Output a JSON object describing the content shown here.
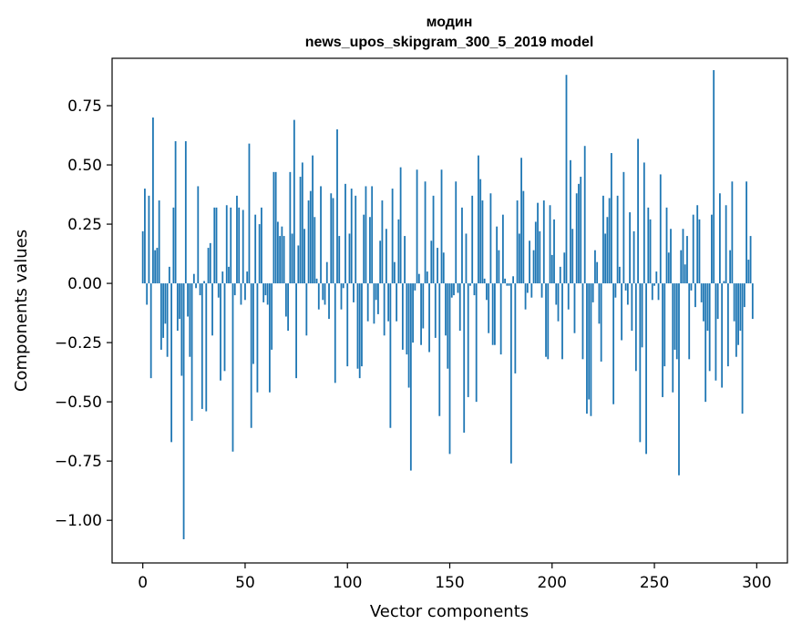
{
  "chart_data": {
    "type": "bar",
    "title_line1": "модин",
    "title_line2": "news_upos_skipgram_300_5_2019 model",
    "xlabel": "Vector components",
    "ylabel": "Components values",
    "xlim": [
      -15,
      315
    ],
    "ylim": [
      -1.18,
      0.95
    ],
    "xticks": [
      0,
      50,
      100,
      150,
      200,
      250,
      300
    ],
    "yticks": [
      -1.0,
      -0.75,
      -0.5,
      -0.25,
      0.0,
      0.25,
      0.5,
      0.75
    ],
    "ytick_labels": [
      "−1.00",
      "−0.75",
      "−0.50",
      "−0.25",
      "0.00",
      "0.25",
      "0.50",
      "0.75"
    ],
    "bar_color": "#1f77b4",
    "series": [
      {
        "name": "модин",
        "x_start": 0,
        "values": [
          0.22,
          0.4,
          -0.09,
          0.37,
          -0.4,
          0.7,
          0.14,
          0.15,
          0.35,
          -0.28,
          -0.23,
          -0.17,
          -0.31,
          0.07,
          -0.67,
          0.32,
          0.6,
          -0.2,
          -0.15,
          -0.39,
          -1.08,
          0.6,
          -0.14,
          -0.31,
          -0.58,
          0.04,
          -0.02,
          0.41,
          -0.05,
          -0.53,
          0.01,
          -0.54,
          0.15,
          0.17,
          -0.22,
          0.32,
          0.32,
          -0.06,
          -0.41,
          0.05,
          -0.37,
          0.33,
          0.07,
          0.32,
          -0.71,
          -0.05,
          0.37,
          0.32,
          -0.09,
          0.31,
          -0.07,
          0.05,
          0.59,
          -0.61,
          -0.34,
          0.29,
          -0.46,
          0.25,
          0.32,
          -0.08,
          -0.05,
          -0.09,
          -0.46,
          -0.28,
          0.47,
          0.47,
          0.26,
          0.2,
          0.24,
          0.2,
          -0.14,
          -0.2,
          0.47,
          0.21,
          0.69,
          -0.4,
          0.16,
          0.45,
          0.51,
          0.23,
          -0.22,
          0.35,
          0.39,
          0.54,
          0.28,
          0.02,
          -0.11,
          0.41,
          -0.07,
          -0.09,
          0.09,
          -0.15,
          0.38,
          0.36,
          -0.42,
          0.65,
          0.2,
          -0.11,
          -0.02,
          0.42,
          -0.35,
          0.21,
          0.4,
          -0.08,
          0.37,
          -0.36,
          -0.4,
          -0.35,
          0.29,
          0.41,
          -0.16,
          0.28,
          0.41,
          -0.17,
          -0.07,
          -0.13,
          0.18,
          0.35,
          -0.22,
          0.23,
          -0.16,
          -0.61,
          0.4,
          0.09,
          -0.16,
          0.27,
          0.49,
          -0.28,
          0.2,
          -0.3,
          -0.44,
          -0.79,
          -0.25,
          -0.03,
          0.48,
          0.04,
          -0.26,
          -0.19,
          0.43,
          0.05,
          -0.29,
          0.18,
          0.37,
          -0.23,
          0.15,
          -0.56,
          0.48,
          0.13,
          -0.22,
          -0.36,
          -0.72,
          -0.06,
          -0.05,
          0.43,
          -0.04,
          -0.2,
          0.32,
          -0.63,
          0.21,
          -0.48,
          -0.01,
          0.37,
          -0.05,
          -0.5,
          0.54,
          0.44,
          0.35,
          0.02,
          -0.07,
          -0.21,
          0.38,
          -0.26,
          -0.26,
          0.24,
          0.14,
          -0.3,
          0.29,
          0.02,
          -0.01,
          -0.01,
          -0.76,
          0.03,
          -0.38,
          0.35,
          0.21,
          0.53,
          0.39,
          -0.11,
          -0.04,
          0.18,
          -0.06,
          0.14,
          0.26,
          0.34,
          0.22,
          -0.06,
          0.35,
          -0.31,
          -0.32,
          0.33,
          0.12,
          0.27,
          -0.09,
          -0.16,
          0.07,
          -0.32,
          0.13,
          0.88,
          -0.11,
          0.52,
          0.23,
          -0.21,
          0.38,
          0.42,
          0.45,
          -0.32,
          0.58,
          -0.55,
          -0.49,
          -0.56,
          -0.08,
          0.14,
          0.09,
          -0.17,
          -0.33,
          0.37,
          0.21,
          0.28,
          0.36,
          0.55,
          -0.51,
          -0.06,
          0.37,
          0.07,
          -0.24,
          0.47,
          -0.03,
          -0.09,
          0.3,
          -0.2,
          0.22,
          -0.37,
          0.61,
          -0.67,
          -0.27,
          0.51,
          -0.72,
          0.32,
          0.27,
          -0.07,
          -0.01,
          0.05,
          -0.07,
          0.46,
          -0.48,
          -0.35,
          0.32,
          0.13,
          0.23,
          -0.46,
          -0.28,
          -0.32,
          -0.81,
          0.14,
          0.23,
          0.08,
          0.2,
          -0.32,
          -0.03,
          0.29,
          -0.1,
          0.33,
          0.27,
          -0.08,
          -0.16,
          -0.5,
          -0.2,
          -0.37,
          0.29,
          0.9,
          -0.41,
          -0.15,
          0.38,
          -0.44,
          0.01,
          0.33,
          -0.35,
          0.14,
          0.43,
          -0.16,
          -0.31,
          -0.26,
          -0.2,
          -0.55,
          -0.1,
          0.43,
          0.1,
          0.2,
          -0.15
        ]
      }
    ]
  }
}
